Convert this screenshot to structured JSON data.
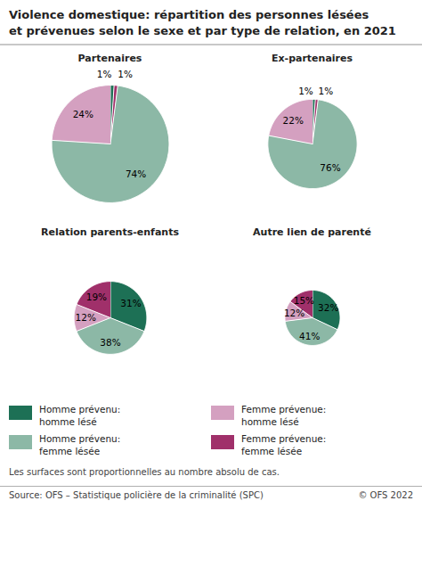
{
  "title": "Violence domestique: répartition des personnes lésées\net prévenues selon le sexe et par type de relation, en 2021",
  "legend": "bottom",
  "series": [
    {
      "name": "Homme prévenu:\nhomme lésé",
      "color": "#1d7055"
    },
    {
      "name": "Homme prévenu:\nfemme lésée",
      "color": "#8cb8a6"
    },
    {
      "name": "Femme prévenue:\nhomme lésé",
      "color": "#d4a0c0"
    },
    {
      "name": "Femme prévenue:\nfemme lésée",
      "color": "#a0306a"
    }
  ],
  "annotations": [
    "Les surfaces sont proportionnelles au nombre absolu de cas.",
    "Source: OFS – Statistique policière de la criminalité (SPC)",
    "© OFS 2022"
  ],
  "chart_data": [
    {
      "type": "pie",
      "title": "Partenaires",
      "categories": [
        "Homme prévenu:\nhomme lésé",
        "Femme prévenue:\nfemme lésée",
        "Homme prévenu:\nfemme lésée",
        "Femme prévenue:\nhomme lésé"
      ],
      "values": [
        1,
        1,
        74,
        24
      ],
      "value_labels": [
        "1%",
        "1%",
        "74%",
        "24%"
      ],
      "colors": [
        "#1d7055",
        "#a0306a",
        "#8cb8a6",
        "#d4a0c0"
      ],
      "data_labels": true,
      "radius": 1.0
    },
    {
      "type": "pie",
      "title": "Ex-partenaires",
      "categories": [
        "Homme prévenu:\nhomme lésé",
        "Femme prévenue:\nfemme lésée",
        "Homme prévenu:\nfemme lésée",
        "Femme prévenue:\nhomme lésé"
      ],
      "values": [
        1,
        1,
        76,
        22
      ],
      "value_labels": [
        "1%",
        "1%",
        "76%",
        "22%"
      ],
      "colors": [
        "#1d7055",
        "#a0306a",
        "#8cb8a6",
        "#d4a0c0"
      ],
      "data_labels": true,
      "radius": 0.76
    },
    {
      "type": "pie",
      "title": "Relation parents-enfants",
      "categories": [
        "Homme prévenu:\nhomme lésé",
        "Homme prévenu:\nfemme lésée",
        "Femme prévenue:\nhomme lésé",
        "Femme prévenue:\nfemme lésée"
      ],
      "values": [
        31,
        38,
        12,
        19
      ],
      "value_labels": [
        "31%",
        "38%",
        "12%",
        "19%"
      ],
      "colors": [
        "#1d7055",
        "#8cb8a6",
        "#d4a0c0",
        "#a0306a"
      ],
      "data_labels": true,
      "radius": 0.62
    },
    {
      "type": "pie",
      "title": "Autre lien de parenté",
      "categories": [
        "Homme prévenu:\nhomme lésé",
        "Homme prévenu:\nfemme lésée",
        "Femme prévenue:\nhomme lésé",
        "Femme prévenue:\nfemme lésée"
      ],
      "values": [
        32,
        41,
        12,
        15
      ],
      "value_labels": [
        "32%",
        "41%",
        "12%",
        "15%"
      ],
      "colors": [
        "#1d7055",
        "#8cb8a6",
        "#d4a0c0",
        "#a0306a"
      ],
      "data_labels": true,
      "radius": 0.47
    }
  ]
}
